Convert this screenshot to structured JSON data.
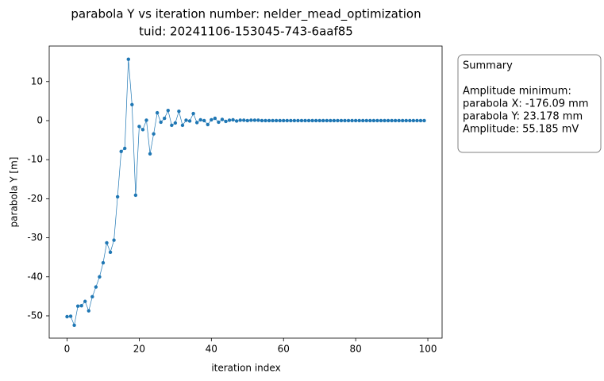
{
  "chart_data": {
    "type": "line",
    "title": "parabola Y vs iteration number: nelder_mead_optimization",
    "subtitle": "tuid: 20241106-153045-743-6aaf85",
    "x_label": "iteration index",
    "y_label": "parabola Y [m]",
    "color": "#1f77b4",
    "x": [
      0,
      1,
      2,
      3,
      4,
      5,
      6,
      7,
      8,
      9,
      10,
      11,
      12,
      13,
      14,
      15,
      16,
      17,
      18,
      19,
      20,
      21,
      22,
      23,
      24,
      25,
      26,
      27,
      28,
      29,
      30,
      31,
      32,
      33,
      34,
      35,
      36,
      37,
      38,
      39,
      40,
      41,
      42,
      43,
      44,
      45,
      46,
      47,
      48,
      49,
      50,
      51,
      52,
      53,
      54,
      55,
      56,
      57,
      58,
      59,
      60,
      61,
      62,
      63,
      64,
      65,
      66,
      67,
      68,
      69,
      70,
      71,
      72,
      73,
      74,
      75,
      76,
      77,
      78,
      79,
      80,
      81,
      82,
      83,
      84,
      85,
      86,
      87,
      88,
      89,
      90,
      91,
      92,
      93,
      94,
      95,
      96,
      97,
      98,
      99
    ],
    "values": [
      -50.2,
      -50.1,
      -52.4,
      -47.5,
      -47.4,
      -46.3,
      -48.7,
      -45.1,
      -42.6,
      -40.0,
      -36.4,
      -31.3,
      -33.7,
      -30.6,
      -19.5,
      -7.9,
      -7.1,
      15.7,
      4.1,
      -19.1,
      -1.5,
      -2.3,
      0.1,
      -8.5,
      -3.4,
      2.0,
      -0.4,
      0.6,
      2.6,
      -1.2,
      -0.6,
      2.4,
      -1.2,
      0.1,
      -0.1,
      1.8,
      -0.5,
      0.2,
      0.0,
      -1.0,
      0.2,
      0.6,
      -0.4,
      0.3,
      -0.2,
      0.1,
      0.2,
      -0.1,
      0.1,
      0.1,
      0.0,
      0.1,
      0.1,
      0.1,
      0.0,
      0,
      0,
      0,
      0,
      0,
      0,
      0,
      0,
      0,
      0,
      0,
      0,
      0,
      0,
      0,
      0,
      0,
      0,
      0,
      0,
      0,
      0,
      0,
      0,
      0,
      0,
      0,
      0,
      0,
      0,
      0,
      0,
      0,
      0,
      0,
      0,
      0,
      0,
      0,
      0,
      0,
      0,
      0,
      0,
      0
    ],
    "xlim": [
      -4.95,
      103.95
    ],
    "ylim": [
      -55.7,
      19.1
    ],
    "xticks": [
      0,
      20,
      40,
      60,
      80,
      100
    ],
    "yticks": [
      -50,
      -40,
      -30,
      -20,
      -10,
      0,
      10
    ],
    "annotation": {
      "title": "Summary",
      "lines": [
        "Amplitude minimum:",
        "parabola X: -176.09 mm",
        "parabola Y: 23.178 mm",
        "Amplitude: 55.185 mV"
      ]
    }
  }
}
